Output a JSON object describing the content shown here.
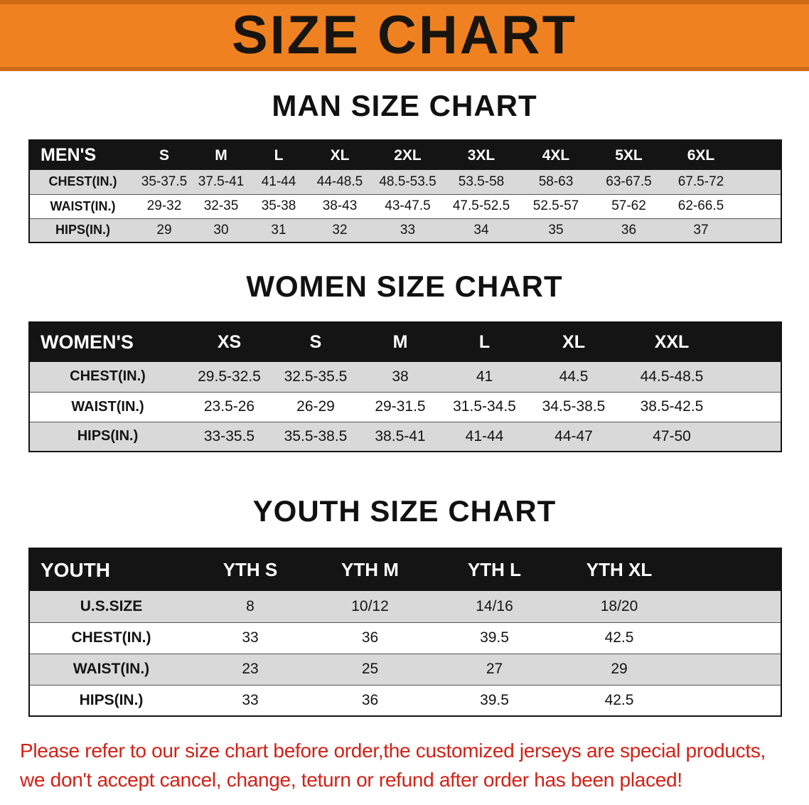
{
  "banner": {
    "title": "SIZE CHART",
    "bg_color": "#f08121",
    "border_color": "#cf6a14"
  },
  "sections": [
    {
      "heading": "MAN SIZE CHART",
      "table": {
        "header": [
          "MEN'S",
          "S",
          "M",
          "L",
          "XL",
          "2XL",
          "3XL",
          "4XL",
          "5XL",
          "6XL"
        ],
        "rows": [
          [
            "CHEST(IN.)",
            "35-37.5",
            "37.5-41",
            "41-44",
            "44-48.5",
            "48.5-53.5",
            "53.5-58",
            "58-63",
            "63-67.5",
            "67.5-72"
          ],
          [
            "WAIST(IN.)",
            "29-32",
            "32-35",
            "35-38",
            "38-43",
            "43-47.5",
            "47.5-52.5",
            "52.5-57",
            "57-62",
            "62-66.5"
          ],
          [
            "HIPS(IN.)",
            "29",
            "30",
            "31",
            "32",
            "33",
            "34",
            "35",
            "36",
            "37"
          ]
        ]
      }
    },
    {
      "heading": "WOMEN SIZE CHART",
      "table": {
        "header": [
          "WOMEN'S",
          "XS",
          "S",
          "M",
          "L",
          "XL",
          "XXL"
        ],
        "rows": [
          [
            "CHEST(IN.)",
            "29.5-32.5",
            "32.5-35.5",
            "38",
            "41",
            "44.5",
            "44.5-48.5"
          ],
          [
            "WAIST(IN.)",
            "23.5-26",
            "26-29",
            "29-31.5",
            "31.5-34.5",
            "34.5-38.5",
            "38.5-42.5"
          ],
          [
            "HIPS(IN.)",
            "33-35.5",
            "35.5-38.5",
            "38.5-41",
            "41-44",
            "44-47",
            "47-50"
          ]
        ]
      }
    },
    {
      "heading": "YOUTH SIZE CHART",
      "table": {
        "header": [
          "YOUTH",
          "YTH S",
          "YTH M",
          "YTH L",
          "YTH XL"
        ],
        "rows": [
          [
            "U.S.SIZE",
            "8",
            "10/12",
            "14/16",
            "18/20"
          ],
          [
            "CHEST(IN.)",
            "33",
            "36",
            "39.5",
            "42.5"
          ],
          [
            "WAIST(IN.)",
            "23",
            "25",
            "27",
            "29"
          ],
          [
            "HIPS(IN.)",
            "33",
            "36",
            "39.5",
            "42.5"
          ]
        ]
      }
    }
  ],
  "table_style": {
    "header_bg": "#141414",
    "header_text": "#ffffff",
    "stripe_color": "#d9d9d9"
  },
  "disclaimer": {
    "color": "#d42015",
    "lines": [
      "Please refer to our size chart before order,the customized jerseys are special products,",
      "we don't accept cancel, change, teturn or refund after order has been placed!"
    ]
  }
}
